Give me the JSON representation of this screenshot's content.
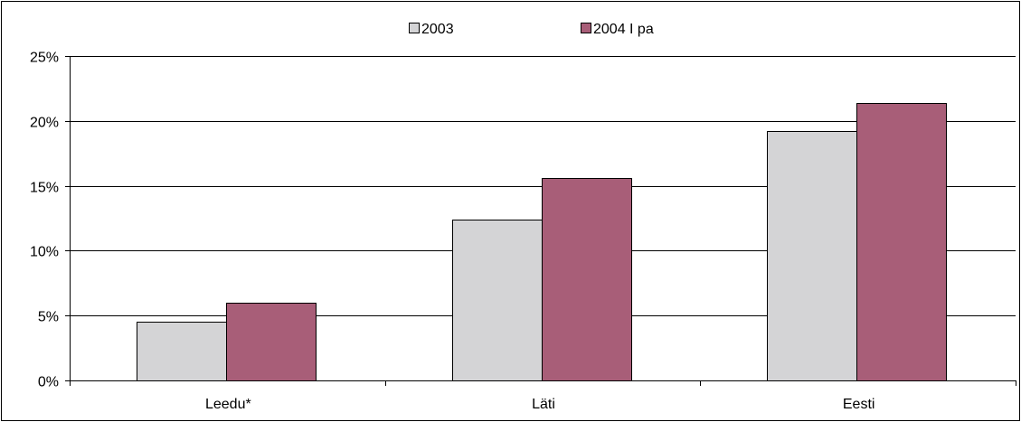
{
  "chart_data": {
    "type": "bar",
    "categories": [
      "Leedu*",
      "Läti",
      "Eesti"
    ],
    "series": [
      {
        "name": "2003",
        "values": [
          4.5,
          12.4,
          19.2
        ],
        "color": "#d4d4d6"
      },
      {
        "name": "2004 I pa",
        "values": [
          6.0,
          15.6,
          21.4
        ],
        "color": "#a85e78"
      }
    ],
    "ylim": [
      0,
      25
    ],
    "yticks": [
      "0%",
      "5%",
      "10%",
      "15%",
      "20%",
      "25%"
    ],
    "ytick_values": [
      0,
      5,
      10,
      15,
      20,
      25
    ],
    "grid": true,
    "legend_position": "top-center",
    "title": "",
    "xlabel": "",
    "ylabel": ""
  }
}
